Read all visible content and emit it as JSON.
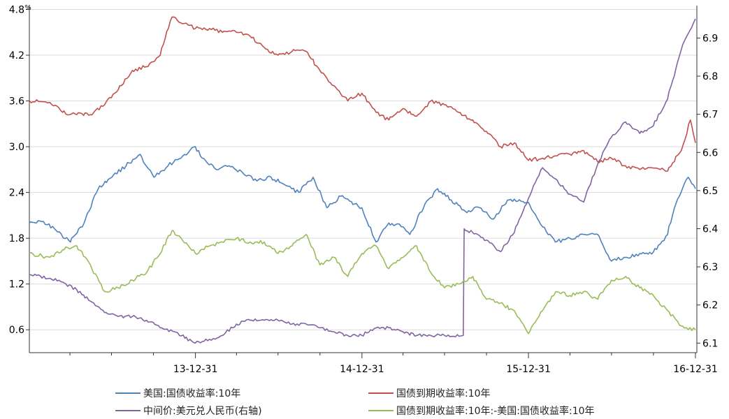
{
  "chart_data": {
    "type": "line",
    "left_axis": {
      "unit": "%",
      "ylim": [
        0.3,
        4.85
      ],
      "ticks": [
        "0.6",
        "1.2",
        "1.8",
        "2.4",
        "3.0",
        "3.6",
        "4.2",
        "4.8"
      ],
      "tick_values": [
        0.6,
        1.2,
        1.8,
        2.4,
        3.0,
        3.6,
        4.2,
        4.8
      ]
    },
    "right_axis": {
      "ylim": [
        6.075,
        6.985
      ],
      "ticks": [
        "6.1",
        "6.2",
        "6.3",
        "6.4",
        "6.5",
        "6.6",
        "6.7",
        "6.8",
        "6.9"
      ],
      "tick_values": [
        6.1,
        6.2,
        6.3,
        6.4,
        6.5,
        6.6,
        6.7,
        6.8,
        6.9
      ]
    },
    "x_axis": {
      "range": [
        "2013-01-01",
        "2016-12-31"
      ],
      "ticks": [
        "13-12-31",
        "14-12-31",
        "15-12-31",
        "16-12-31"
      ],
      "tick_dates": [
        "2013-12-31",
        "2014-12-31",
        "2015-12-31",
        "2016-12-31"
      ]
    },
    "grid": "horizontal",
    "legend_position": "bottom",
    "series": [
      {
        "name": "美国:国债收益率:10年",
        "axis": "left",
        "color": "#4f81bd",
        "points": [
          [
            "2013-01-01",
            2.0
          ],
          [
            "2013-02-01",
            2.02
          ],
          [
            "2013-03-01",
            1.9
          ],
          [
            "2013-04-01",
            1.75
          ],
          [
            "2013-05-01",
            2.0
          ],
          [
            "2013-06-01",
            2.45
          ],
          [
            "2013-07-01",
            2.6
          ],
          [
            "2013-08-01",
            2.75
          ],
          [
            "2013-09-01",
            2.9
          ],
          [
            "2013-10-01",
            2.6
          ],
          [
            "2013-11-01",
            2.75
          ],
          [
            "2013-12-31",
            3.0
          ],
          [
            "2014-01-15",
            2.85
          ],
          [
            "2014-02-15",
            2.7
          ],
          [
            "2014-03-15",
            2.75
          ],
          [
            "2014-04-15",
            2.65
          ],
          [
            "2014-05-15",
            2.55
          ],
          [
            "2014-06-15",
            2.6
          ],
          [
            "2014-07-15",
            2.5
          ],
          [
            "2014-08-15",
            2.4
          ],
          [
            "2014-09-15",
            2.6
          ],
          [
            "2014-10-15",
            2.2
          ],
          [
            "2014-11-15",
            2.35
          ],
          [
            "2014-12-31",
            2.2
          ],
          [
            "2015-01-31",
            1.75
          ],
          [
            "2015-02-28",
            2.0
          ],
          [
            "2015-03-31",
            1.95
          ],
          [
            "2015-04-15",
            1.85
          ],
          [
            "2015-05-15",
            2.2
          ],
          [
            "2015-06-15",
            2.45
          ],
          [
            "2015-07-15",
            2.3
          ],
          [
            "2015-08-15",
            2.15
          ],
          [
            "2015-09-15",
            2.2
          ],
          [
            "2015-10-15",
            2.05
          ],
          [
            "2015-11-15",
            2.3
          ],
          [
            "2015-12-31",
            2.27
          ],
          [
            "2016-01-31",
            1.95
          ],
          [
            "2016-02-28",
            1.75
          ],
          [
            "2016-03-31",
            1.8
          ],
          [
            "2016-04-30",
            1.85
          ],
          [
            "2016-05-31",
            1.85
          ],
          [
            "2016-06-30",
            1.5
          ],
          [
            "2016-07-31",
            1.55
          ],
          [
            "2016-08-31",
            1.6
          ],
          [
            "2016-09-30",
            1.62
          ],
          [
            "2016-10-31",
            1.85
          ],
          [
            "2016-11-15",
            2.2
          ],
          [
            "2016-12-15",
            2.6
          ],
          [
            "2016-12-31",
            2.45
          ]
        ]
      },
      {
        "name": "国债到期收益率:10年",
        "axis": "left",
        "color": "#c0504d",
        "points": [
          [
            "2013-01-01",
            3.6
          ],
          [
            "2013-02-15",
            3.58
          ],
          [
            "2013-03-15",
            3.45
          ],
          [
            "2013-04-15",
            3.42
          ],
          [
            "2013-05-15",
            3.42
          ],
          [
            "2013-06-15",
            3.55
          ],
          [
            "2013-07-15",
            3.75
          ],
          [
            "2013-08-15",
            4.0
          ],
          [
            "2013-09-15",
            4.05
          ],
          [
            "2013-10-15",
            4.2
          ],
          [
            "2013-11-10",
            4.7
          ],
          [
            "2013-12-31",
            4.55
          ],
          [
            "2014-01-31",
            4.55
          ],
          [
            "2014-02-28",
            4.5
          ],
          [
            "2014-03-31",
            4.5
          ],
          [
            "2014-04-30",
            4.45
          ],
          [
            "2014-05-31",
            4.3
          ],
          [
            "2014-06-30",
            4.2
          ],
          [
            "2014-07-31",
            4.25
          ],
          [
            "2014-08-31",
            4.25
          ],
          [
            "2014-09-30",
            4.0
          ],
          [
            "2014-10-31",
            3.8
          ],
          [
            "2014-11-30",
            3.6
          ],
          [
            "2014-12-31",
            3.7
          ],
          [
            "2015-01-31",
            3.45
          ],
          [
            "2015-02-28",
            3.35
          ],
          [
            "2015-03-31",
            3.5
          ],
          [
            "2015-04-30",
            3.4
          ],
          [
            "2015-05-31",
            3.6
          ],
          [
            "2015-06-30",
            3.55
          ],
          [
            "2015-07-31",
            3.45
          ],
          [
            "2015-08-31",
            3.35
          ],
          [
            "2015-09-30",
            3.2
          ],
          [
            "2015-10-31",
            3.0
          ],
          [
            "2015-11-30",
            3.05
          ],
          [
            "2015-12-31",
            2.82
          ],
          [
            "2016-01-31",
            2.85
          ],
          [
            "2016-02-28",
            2.88
          ],
          [
            "2016-03-31",
            2.9
          ],
          [
            "2016-04-30",
            2.95
          ],
          [
            "2016-05-31",
            2.8
          ],
          [
            "2016-06-30",
            2.85
          ],
          [
            "2016-07-31",
            2.75
          ],
          [
            "2016-08-31",
            2.7
          ],
          [
            "2016-09-30",
            2.72
          ],
          [
            "2016-10-31",
            2.68
          ],
          [
            "2016-11-30",
            2.95
          ],
          [
            "2016-12-20",
            3.35
          ],
          [
            "2016-12-31",
            3.05
          ]
        ]
      },
      {
        "name": "中间价:美元兑人民币(右轴)",
        "axis": "right",
        "color": "#8064a2",
        "points": [
          [
            "2013-01-01",
            6.28
          ],
          [
            "2013-02-15",
            6.27
          ],
          [
            "2013-03-15",
            6.26
          ],
          [
            "2013-04-15",
            6.24
          ],
          [
            "2013-05-15",
            6.21
          ],
          [
            "2013-06-15",
            6.18
          ],
          [
            "2013-07-15",
            6.17
          ],
          [
            "2013-08-15",
            6.17
          ],
          [
            "2013-09-15",
            6.16
          ],
          [
            "2013-10-15",
            6.14
          ],
          [
            "2013-11-15",
            6.13
          ],
          [
            "2013-12-31",
            6.1
          ],
          [
            "2014-01-31",
            6.11
          ],
          [
            "2014-02-28",
            6.12
          ],
          [
            "2014-03-31",
            6.15
          ],
          [
            "2014-04-30",
            6.16
          ],
          [
            "2014-05-31",
            6.16
          ],
          [
            "2014-06-30",
            6.16
          ],
          [
            "2014-07-31",
            6.15
          ],
          [
            "2014-08-31",
            6.15
          ],
          [
            "2014-09-30",
            6.14
          ],
          [
            "2014-10-31",
            6.13
          ],
          [
            "2014-11-30",
            6.12
          ],
          [
            "2014-12-31",
            6.12
          ],
          [
            "2015-01-31",
            6.14
          ],
          [
            "2015-02-28",
            6.14
          ],
          [
            "2015-03-31",
            6.13
          ],
          [
            "2015-04-30",
            6.12
          ],
          [
            "2015-05-31",
            6.12
          ],
          [
            "2015-06-30",
            6.12
          ],
          [
            "2015-08-10",
            6.12
          ],
          [
            "2015-08-12",
            6.4
          ],
          [
            "2015-08-31",
            6.39
          ],
          [
            "2015-09-30",
            6.37
          ],
          [
            "2015-10-31",
            6.34
          ],
          [
            "2015-11-30",
            6.39
          ],
          [
            "2015-12-31",
            6.48
          ],
          [
            "2016-01-31",
            6.56
          ],
          [
            "2016-02-29",
            6.53
          ],
          [
            "2016-03-31",
            6.49
          ],
          [
            "2016-04-30",
            6.47
          ],
          [
            "2016-05-31",
            6.57
          ],
          [
            "2016-06-30",
            6.64
          ],
          [
            "2016-07-31",
            6.68
          ],
          [
            "2016-08-31",
            6.65
          ],
          [
            "2016-09-30",
            6.67
          ],
          [
            "2016-10-31",
            6.74
          ],
          [
            "2016-11-30",
            6.87
          ],
          [
            "2016-12-31",
            6.95
          ]
        ]
      },
      {
        "name": "国债到期收益率:10年:-美国:国债收益率:10年",
        "axis": "left",
        "color": "#9bbb59",
        "points": [
          [
            "2013-01-01",
            1.6
          ],
          [
            "2013-02-15",
            1.55
          ],
          [
            "2013-03-15",
            1.65
          ],
          [
            "2013-04-15",
            1.7
          ],
          [
            "2013-05-15",
            1.45
          ],
          [
            "2013-06-15",
            1.1
          ],
          [
            "2013-07-15",
            1.15
          ],
          [
            "2013-08-15",
            1.25
          ],
          [
            "2013-09-15",
            1.35
          ],
          [
            "2013-10-15",
            1.6
          ],
          [
            "2013-11-10",
            1.9
          ],
          [
            "2013-12-31",
            1.6
          ],
          [
            "2014-01-31",
            1.7
          ],
          [
            "2014-02-28",
            1.75
          ],
          [
            "2014-03-31",
            1.8
          ],
          [
            "2014-04-30",
            1.75
          ],
          [
            "2014-05-31",
            1.75
          ],
          [
            "2014-06-30",
            1.6
          ],
          [
            "2014-07-31",
            1.7
          ],
          [
            "2014-08-31",
            1.85
          ],
          [
            "2014-09-30",
            1.45
          ],
          [
            "2014-10-31",
            1.55
          ],
          [
            "2014-11-30",
            1.3
          ],
          [
            "2014-12-31",
            1.6
          ],
          [
            "2015-01-31",
            1.7
          ],
          [
            "2015-02-28",
            1.4
          ],
          [
            "2015-03-31",
            1.55
          ],
          [
            "2015-04-30",
            1.7
          ],
          [
            "2015-05-31",
            1.35
          ],
          [
            "2015-06-30",
            1.15
          ],
          [
            "2015-07-31",
            1.2
          ],
          [
            "2015-08-31",
            1.3
          ],
          [
            "2015-09-30",
            1.0
          ],
          [
            "2015-10-31",
            0.95
          ],
          [
            "2015-11-30",
            0.85
          ],
          [
            "2015-12-31",
            0.55
          ],
          [
            "2016-01-31",
            0.85
          ],
          [
            "2016-02-29",
            1.1
          ],
          [
            "2016-03-31",
            1.05
          ],
          [
            "2016-04-30",
            1.1
          ],
          [
            "2016-05-31",
            1.0
          ],
          [
            "2016-06-30",
            1.25
          ],
          [
            "2016-07-31",
            1.3
          ],
          [
            "2016-08-31",
            1.15
          ],
          [
            "2016-09-30",
            1.05
          ],
          [
            "2016-10-31",
            0.85
          ],
          [
            "2016-11-30",
            0.65
          ],
          [
            "2016-12-31",
            0.6
          ]
        ]
      }
    ]
  },
  "legend": [
    {
      "label": "美国:国债收益率:10年",
      "color": "#4f81bd"
    },
    {
      "label": "国债到期收益率:10年",
      "color": "#c0504d"
    },
    {
      "label": "中间价:美元兑人民币(右轴)",
      "color": "#8064a2"
    },
    {
      "label": "国债到期收益率:10年:-美国:国债收益率:10年",
      "color": "#9bbb59"
    }
  ]
}
